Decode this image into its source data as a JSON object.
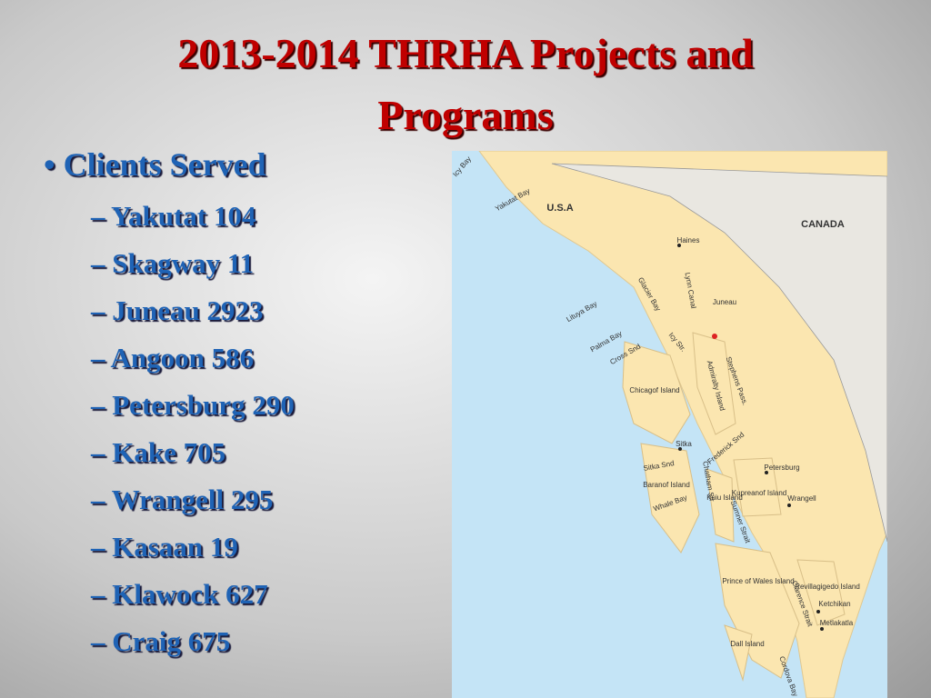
{
  "header": {
    "title_line1": "2013-2014 THRHA Projects and",
    "title_line2": "Programs"
  },
  "list": {
    "heading": "Clients Served",
    "items": [
      "Yakutat 104",
      "Skagway 11",
      "Juneau 2923",
      "Angoon 586",
      "Petersburg 290",
      "Kake 705",
      "Wrangell 295",
      "Kasaan 19",
      "Klawock 627",
      "Craig 675"
    ]
  },
  "map": {
    "labels": [
      "Icy Bay",
      "Yakutat Bay",
      "U.S.A",
      "CANADA",
      "Haines",
      "Lynn Canal",
      "Glacier Bay",
      "Lituya Bay",
      "Juneau",
      "Palma Bay",
      "Icy Str.",
      "Cross Snd",
      "Admiralty Island",
      "Stephens Pass.",
      "Chicagof Island",
      "Sitka",
      "Frederick Snd",
      "Sitka Snd",
      "Petersburg",
      "Baranof Island",
      "Chatham Str",
      "Kupreanof Island",
      "Kuiu Island",
      "Wrangell",
      "Whale Bay",
      "Sumner Strait",
      "Prince of Wales Island",
      "Revillagigedo Island",
      "Clarence Strait",
      "Ketchikan",
      "Metlakatla",
      "Dall Island",
      "Cordova Bay"
    ]
  }
}
